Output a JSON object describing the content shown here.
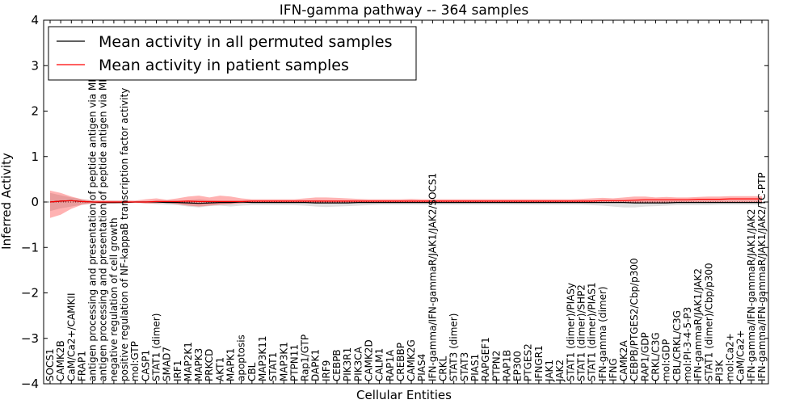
{
  "chart_data": {
    "type": "line",
    "title": "IFN-gamma pathway -- 364 samples",
    "xlabel": "Cellular Entities",
    "ylabel": "Inferred Activity",
    "ylim": [
      -4,
      4
    ],
    "yticks": [
      -4,
      -3,
      -2,
      -1,
      0,
      1,
      2,
      3,
      4
    ],
    "ytick_labels": [
      "−4",
      "−3",
      "−2",
      "−1",
      "0",
      "1",
      "2",
      "3",
      "4"
    ],
    "legend": {
      "position": "top-left",
      "entries": [
        {
          "label": "Mean activity in all permuted samples",
          "color": "#000000"
        },
        {
          "label": "Mean activity in patient samples",
          "color": "#ff0000"
        }
      ]
    },
    "categories": [
      "SOCS1",
      "CAMK2B",
      "CaM/Ca2+/CAMKII",
      "FRAP1",
      "antigen processing and presentation of peptide antigen via MHC class I",
      "antigen processing and presentation of peptide antigen via MHC class II",
      "negative regulation of cell growth",
      "positive regulation of NF-kappaB transcription factor activity",
      "mol:GTP",
      "CASP1",
      "STAT1 (dimer)",
      "SMAD7",
      "IRF1",
      "MAP2K1",
      "MAPK3",
      "PRKCD",
      "AKT1",
      "MAPK1",
      "apoptosis",
      "CBL",
      "MAP3K11",
      "STAT1",
      "MAP3K1",
      "PTPN11",
      "Rap1/GTP",
      "DAPK1",
      "IRF9",
      "CEBPB",
      "PIK3R1",
      "PIK3CA",
      "CAMK2D",
      "CALM1",
      "RAP1A",
      "CREBBP",
      "CAMK2G",
      "PIAS4",
      "IFN-gamma/IFN-gammaR/JAK1/JAK2/SOCS1",
      "CRKL",
      "STAT3 (dimer)",
      "STAT3",
      "PIAS1",
      "RAPGEF1",
      "PTPN2",
      "RAP1B",
      "EP300",
      "PTGES2",
      "IFNGR1",
      "JAK1",
      "JAK2",
      "STAT1 (dimer)/PIASy",
      "STAT1 (dimer)/SHP2",
      "STAT1 (dimer)/PIAS1",
      "IFN-gamma (dimer)",
      "IFNG",
      "CAMK2A",
      "CEBPB/PTGES2/Cbp/p300",
      "RAP1/GDP",
      "CRKL/C3G",
      "mol:GDP",
      "CBL/CRKL/C3G",
      "mol:PI-3-4-5-P3",
      "IFN-gammaR/JAK1/JAK2",
      "STAT1 (dimer)/Cbp/p300",
      "PI3K",
      "mol:Ca2+",
      "CaM/Ca2+",
      "IFN-gamma/IFN-gammaR/JAK1/JAK2",
      "IFN-gamma/IFN-gammaR/JAK1/JAK2/TC-PTP"
    ],
    "series": [
      {
        "name": "Mean activity in all permuted samples",
        "color": "#000000",
        "values": [
          0,
          0.02,
          0.03,
          0.01,
          0,
          -0.01,
          -0.01,
          -0.01,
          0,
          0,
          0,
          -0.01,
          -0.01,
          -0.02,
          -0.03,
          -0.02,
          -0.01,
          -0.01,
          0,
          -0.01,
          -0.01,
          -0.01,
          -0.01,
          -0.01,
          -0.01,
          -0.02,
          -0.02,
          -0.02,
          -0.02,
          -0.01,
          -0.01,
          -0.01,
          -0.01,
          -0.01,
          -0.01,
          -0.01,
          -0.01,
          -0.01,
          -0.01,
          -0.01,
          -0.01,
          -0.01,
          -0.01,
          -0.01,
          -0.01,
          -0.01,
          -0.01,
          -0.01,
          -0.01,
          -0.01,
          -0.01,
          -0.01,
          -0.01,
          -0.01,
          -0.01,
          -0.02,
          -0.02,
          -0.02,
          -0.02,
          -0.01,
          -0.01,
          -0.01,
          -0.01,
          -0.01,
          -0.01,
          -0.01,
          -0.01,
          -0.01
        ],
        "band_upper": [
          0.2,
          0.15,
          0.1,
          0.06,
          0.04,
          0.03,
          0.03,
          0.03,
          0.02,
          0.02,
          0.03,
          0.03,
          0.03,
          0.04,
          0.06,
          0.04,
          0.03,
          0.03,
          0.03,
          0.03,
          0.03,
          0.03,
          0.03,
          0.03,
          0.03,
          0.04,
          0.03,
          0.03,
          0.03,
          0.03,
          0.03,
          0.03,
          0.03,
          0.03,
          0.03,
          0.03,
          0.03,
          0.03,
          0.03,
          0.03,
          0.03,
          0.03,
          0.03,
          0.03,
          0.03,
          0.03,
          0.03,
          0.03,
          0.03,
          0.03,
          0.03,
          0.03,
          0.03,
          0.03,
          0.04,
          0.03,
          0.03,
          0.03,
          0.03,
          0.03,
          0.03,
          0.03,
          0.03,
          0.03,
          0.03,
          0.03,
          0.03,
          0.03
        ],
        "band_lower": [
          -0.2,
          -0.14,
          -0.1,
          -0.06,
          -0.04,
          -0.03,
          -0.03,
          -0.03,
          -0.02,
          -0.03,
          -0.05,
          -0.06,
          -0.07,
          -0.1,
          -0.12,
          -0.09,
          -0.08,
          -0.1,
          -0.08,
          -0.07,
          -0.07,
          -0.07,
          -0.07,
          -0.07,
          -0.08,
          -0.1,
          -0.11,
          -0.1,
          -0.09,
          -0.08,
          -0.07,
          -0.06,
          -0.06,
          -0.06,
          -0.06,
          -0.06,
          -0.06,
          -0.06,
          -0.06,
          -0.06,
          -0.06,
          -0.06,
          -0.06,
          -0.06,
          -0.06,
          -0.06,
          -0.06,
          -0.06,
          -0.06,
          -0.06,
          -0.06,
          -0.07,
          -0.08,
          -0.1,
          -0.12,
          -0.12,
          -0.1,
          -0.09,
          -0.08,
          -0.07,
          -0.07,
          -0.07,
          -0.07,
          -0.06,
          -0.06,
          -0.06,
          -0.06,
          -0.06
        ]
      },
      {
        "name": "Mean activity in patient samples",
        "color": "#ff0000",
        "values": [
          0,
          0.02,
          0.03,
          0.01,
          0,
          0,
          0,
          0,
          0,
          0,
          0.01,
          0.01,
          0.01,
          0.02,
          0.01,
          0.01,
          0.01,
          0.01,
          0.01,
          0.02,
          0.02,
          0.02,
          0.02,
          0.02,
          0.02,
          0.02,
          0.02,
          0.02,
          0.02,
          0.02,
          0.02,
          0.02,
          0.02,
          0.02,
          0.02,
          0.02,
          0.02,
          0.02,
          0.02,
          0.02,
          0.02,
          0.02,
          0.02,
          0.02,
          0.02,
          0.02,
          0.02,
          0.02,
          0.02,
          0.02,
          0.02,
          0.02,
          0.03,
          0.03,
          0.03,
          0.04,
          0.05,
          0.05,
          0.05,
          0.05,
          0.05,
          0.06,
          0.06,
          0.06,
          0.07,
          0.07,
          0.07,
          0.07
        ],
        "band_upper": [
          0.25,
          0.2,
          0.12,
          0.06,
          0.03,
          0.03,
          0.03,
          0.03,
          0.03,
          0.06,
          0.08,
          0.05,
          0.08,
          0.12,
          0.14,
          0.1,
          0.14,
          0.12,
          0.08,
          0.06,
          0.06,
          0.06,
          0.06,
          0.06,
          0.08,
          0.1,
          0.1,
          0.09,
          0.08,
          0.07,
          0.06,
          0.06,
          0.06,
          0.06,
          0.07,
          0.06,
          0.06,
          0.06,
          0.06,
          0.06,
          0.06,
          0.06,
          0.06,
          0.06,
          0.06,
          0.06,
          0.06,
          0.06,
          0.06,
          0.06,
          0.07,
          0.08,
          0.09,
          0.08,
          0.1,
          0.12,
          0.12,
          0.1,
          0.11,
          0.1,
          0.1,
          0.11,
          0.12,
          0.12,
          0.13,
          0.13,
          0.13,
          0.13
        ],
        "band_lower": [
          -0.35,
          -0.28,
          -0.15,
          -0.06,
          -0.03,
          -0.03,
          -0.03,
          -0.02,
          -0.01,
          -0.03,
          -0.03,
          -0.02,
          -0.05,
          -0.08,
          -0.1,
          -0.08,
          -0.06,
          -0.05,
          -0.03,
          -0.02,
          -0.02,
          -0.02,
          -0.02,
          -0.02,
          -0.02,
          -0.03,
          -0.03,
          -0.03,
          -0.02,
          -0.02,
          -0.02,
          -0.02,
          -0.02,
          -0.02,
          -0.02,
          -0.02,
          -0.02,
          -0.02,
          -0.02,
          -0.02,
          -0.02,
          -0.02,
          -0.02,
          -0.02,
          -0.02,
          -0.02,
          -0.02,
          -0.02,
          -0.02,
          -0.02,
          -0.02,
          -0.02,
          -0.02,
          -0.02,
          -0.02,
          -0.02,
          -0.02,
          -0.02,
          -0.02,
          -0.02,
          -0.02,
          -0.01,
          -0.01,
          -0.01,
          0,
          0,
          0,
          0
        ]
      }
    ]
  }
}
